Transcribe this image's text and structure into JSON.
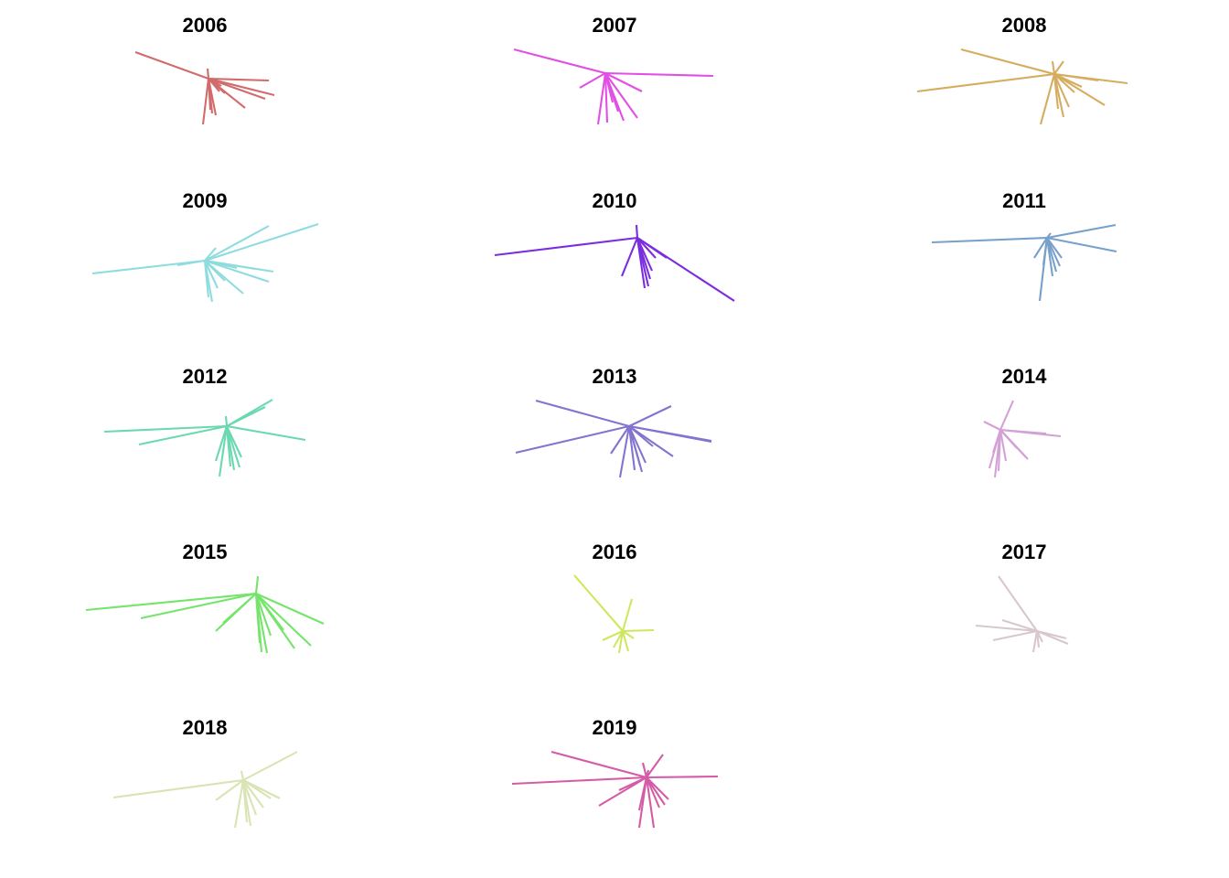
{
  "chart_data": {
    "type": "line",
    "title": "",
    "xlabel": "",
    "ylabel": "",
    "grid": false,
    "legend": "none",
    "panels": [
      {
        "title": "2006",
        "color": "#d26b6b",
        "hub": [
          0,
          0
        ],
        "ends": [
          [
            -80,
            -29
          ],
          [
            66,
            2
          ],
          [
            72,
            18
          ],
          [
            62,
            22
          ],
          [
            40,
            32
          ],
          [
            14,
            8
          ],
          [
            -6,
            50
          ],
          [
            -1,
            -11
          ],
          [
            2,
            34
          ],
          [
            8,
            40
          ],
          [
            4,
            38
          ],
          [
            12,
            14
          ],
          [
            18,
            16
          ]
        ]
      },
      {
        "title": "2007",
        "color": "#e24fe4",
        "hub": [
          0,
          0
        ],
        "ends": [
          [
            -100,
            -26
          ],
          [
            118,
            3
          ],
          [
            40,
            20
          ],
          [
            35,
            49
          ],
          [
            -28,
            16
          ],
          [
            -8,
            56
          ],
          [
            2,
            54
          ],
          [
            14,
            42
          ],
          [
            20,
            52
          ],
          [
            8,
            32
          ]
        ]
      },
      {
        "title": "2008",
        "color": "#d6ad5e",
        "hub": [
          0,
          0
        ],
        "ends": [
          [
            -102,
            -27
          ],
          [
            -150,
            19
          ],
          [
            80,
            10
          ],
          [
            48,
            7
          ],
          [
            55,
            34
          ],
          [
            -15,
            55
          ],
          [
            10,
            -14
          ],
          [
            -2,
            -14
          ],
          [
            4,
            38
          ],
          [
            10,
            47
          ],
          [
            16,
            36
          ],
          [
            22,
            20
          ],
          [
            30,
            14
          ]
        ]
      },
      {
        "title": "2009",
        "color": "#8fdcdf",
        "hub": [
          0,
          0
        ],
        "ends": [
          [
            -123,
            14
          ],
          [
            124,
            -40
          ],
          [
            70,
            -38
          ],
          [
            75,
            12
          ],
          [
            70,
            23
          ],
          [
            42,
            36
          ],
          [
            12,
            -14
          ],
          [
            -30,
            5
          ],
          [
            4,
            40
          ],
          [
            8,
            45
          ],
          [
            14,
            30
          ],
          [
            22,
            22
          ],
          [
            55,
            9
          ],
          [
            35,
            8
          ]
        ]
      },
      {
        "title": "2010",
        "color": "#7a2ddf",
        "hub": [
          0,
          0
        ],
        "ends": [
          [
            -156,
            19
          ],
          [
            106,
            69
          ],
          [
            -17,
            42
          ],
          [
            -1,
            -14
          ],
          [
            8,
            55
          ],
          [
            12,
            53
          ],
          [
            16,
            36
          ],
          [
            20,
            22
          ],
          [
            32,
            22
          ],
          [
            14,
            45
          ]
        ]
      },
      {
        "title": "2011",
        "color": "#77a0cb",
        "hub": [
          0,
          0
        ],
        "ends": [
          [
            -126,
            5
          ],
          [
            75,
            -14
          ],
          [
            76,
            15
          ],
          [
            -8,
            69
          ],
          [
            -14,
            22
          ],
          [
            6,
            42
          ],
          [
            10,
            37
          ],
          [
            14,
            31
          ],
          [
            16,
            22
          ],
          [
            -4,
            30
          ],
          [
            4,
            -5
          ]
        ]
      },
      {
        "title": "2012",
        "color": "#6ad9b0",
        "hub": [
          0,
          0
        ],
        "ends": [
          [
            -134,
            6
          ],
          [
            -96,
            20
          ],
          [
            86,
            15
          ],
          [
            50,
            -29
          ],
          [
            42,
            -21
          ],
          [
            -8,
            55
          ],
          [
            -1,
            -11
          ],
          [
            4,
            44
          ],
          [
            8,
            48
          ],
          [
            14,
            45
          ],
          [
            16,
            34
          ],
          [
            -12,
            38
          ]
        ]
      },
      {
        "title": "2013",
        "color": "#8474d0",
        "hub": [
          0,
          0
        ],
        "ends": [
          [
            -102,
            -28
          ],
          [
            -124,
            29
          ],
          [
            90,
            17
          ],
          [
            90,
            16
          ],
          [
            46,
            -22
          ],
          [
            48,
            33
          ],
          [
            -10,
            56
          ],
          [
            12,
            43
          ],
          [
            14,
            50
          ],
          [
            18,
            40
          ],
          [
            -20,
            30
          ],
          [
            26,
            22
          ],
          [
            6,
            48
          ]
        ]
      },
      {
        "title": "2014",
        "color": "#d4a1d6",
        "hub": [
          0,
          0
        ],
        "ends": [
          [
            14,
            -32
          ],
          [
            -18,
            -9
          ],
          [
            66,
            7
          ],
          [
            50,
            4
          ],
          [
            30,
            32
          ],
          [
            28,
            30
          ],
          [
            -6,
            52
          ],
          [
            -12,
            42
          ],
          [
            -2,
            45
          ],
          [
            6,
            34
          ],
          [
            18,
            20
          ],
          [
            -8,
            25
          ]
        ]
      },
      {
        "title": "2015",
        "color": "#74e56a",
        "hub": [
          0,
          0
        ],
        "ends": [
          [
            -186,
            18
          ],
          [
            -126,
            27
          ],
          [
            74,
            33
          ],
          [
            60,
            57
          ],
          [
            42,
            60
          ],
          [
            -44,
            41
          ],
          [
            2,
            -19
          ],
          [
            4,
            54
          ],
          [
            12,
            65
          ],
          [
            6,
            64
          ],
          [
            16,
            46
          ],
          [
            -36,
            32
          ],
          [
            30,
            40
          ]
        ]
      },
      {
        "title": "2016",
        "color": "#cde85f",
        "hub": [
          0,
          0
        ],
        "ends": [
          [
            -53,
            -61
          ],
          [
            34,
            -1
          ],
          [
            10,
            -35
          ],
          [
            -22,
            10
          ],
          [
            -4,
            24
          ],
          [
            6,
            22
          ],
          [
            12,
            8
          ],
          [
            -10,
            18
          ]
        ]
      },
      {
        "title": "2017",
        "color": "#d8c7cc",
        "hub": [
          0,
          0
        ],
        "ends": [
          [
            -42,
            -60
          ],
          [
            -67,
            -6
          ],
          [
            -48,
            10
          ],
          [
            32,
            8
          ],
          [
            34,
            14
          ],
          [
            -4,
            23
          ],
          [
            -38,
            -12
          ],
          [
            2,
            18
          ],
          [
            6,
            12
          ]
        ]
      },
      {
        "title": "2018",
        "color": "#d8e4b3",
        "hub": [
          0,
          0
        ],
        "ends": [
          [
            -142,
            19
          ],
          [
            59,
            -31
          ],
          [
            40,
            20
          ],
          [
            -30,
            22
          ],
          [
            -9,
            52
          ],
          [
            -2,
            -10
          ],
          [
            4,
            46
          ],
          [
            8,
            50
          ],
          [
            14,
            38
          ],
          [
            22,
            30
          ],
          [
            30,
            20
          ]
        ]
      },
      {
        "title": "2019",
        "color": "#d45ca6",
        "hub": [
          0,
          0
        ],
        "ends": [
          [
            -104,
            -28
          ],
          [
            -147,
            7
          ],
          [
            78,
            -1
          ],
          [
            18,
            -25
          ],
          [
            -4,
            -16
          ],
          [
            -52,
            31
          ],
          [
            -8,
            55
          ],
          [
            8,
            55
          ],
          [
            2,
            -8
          ],
          [
            14,
            33
          ],
          [
            20,
            30
          ],
          [
            24,
            24
          ],
          [
            -30,
            14
          ],
          [
            -8,
            36
          ]
        ]
      }
    ]
  }
}
